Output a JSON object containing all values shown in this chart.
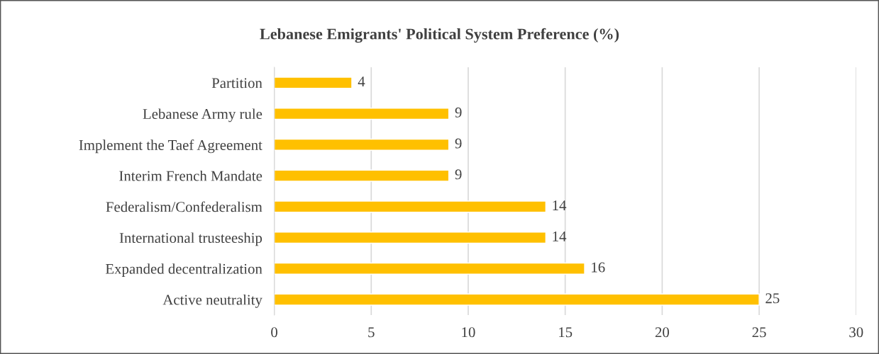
{
  "chart_data": {
    "type": "bar",
    "orientation": "horizontal",
    "title": "Lebanese Emigrants' Political System Preference (%)",
    "categories": [
      "Partition",
      "Lebanese Army rule",
      "Implement the Taef Agreement",
      "Interim French Mandate",
      "Federalism/Confederalism",
      "International trusteeship",
      "Expanded decentralization",
      "Active neutrality"
    ],
    "values": [
      4,
      9,
      9,
      9,
      14,
      14,
      16,
      25
    ],
    "color": "#ffc000",
    "xlim": [
      0,
      30
    ],
    "xticks": [
      0,
      5,
      10,
      15,
      20,
      25,
      30
    ],
    "grid": "x",
    "data_labels": true
  }
}
